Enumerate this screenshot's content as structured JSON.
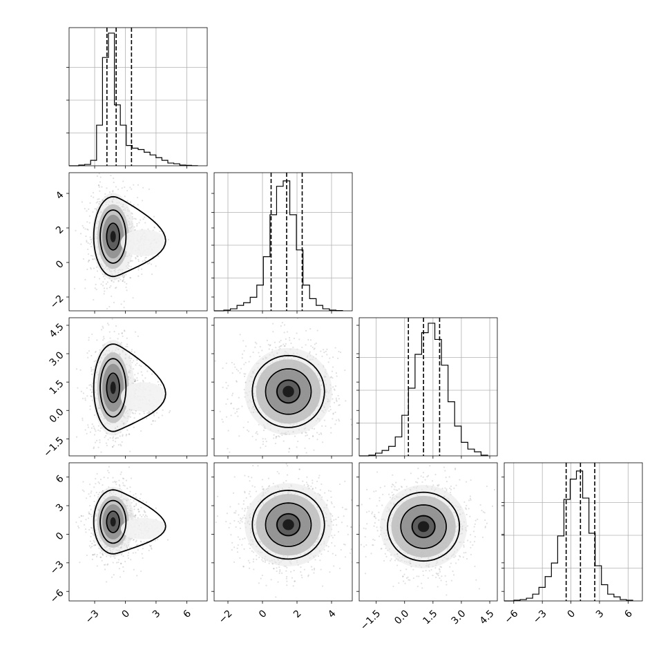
{
  "chart_data": {
    "type": "corner",
    "grid": true,
    "params": [
      {
        "range": [
          -5.5,
          8.0
        ],
        "ticks": [
          -3,
          0,
          3,
          6
        ],
        "tick_labels": [
          "−3",
          "0",
          "3",
          "6"
        ],
        "quantiles": [
          -1.8,
          -0.9,
          0.6
        ],
        "hist": [
          0.005,
          0.01,
          0.04,
          0.3,
          0.8,
          0.98,
          0.45,
          0.3,
          0.15,
          0.13,
          0.12,
          0.1,
          0.08,
          0.06,
          0.04,
          0.02,
          0.015,
          0.005,
          0.003,
          0.001
        ]
      },
      {
        "range": [
          -2.8,
          5.2
        ],
        "ticks": [
          -2,
          0,
          2,
          4
        ],
        "tick_labels": [
          "−2",
          "0",
          "2",
          "4"
        ],
        "quantiles": [
          0.5,
          1.4,
          2.3
        ],
        "hist": [
          0.005,
          0.015,
          0.04,
          0.06,
          0.1,
          0.19,
          0.4,
          0.71,
          0.92,
          0.96,
          0.71,
          0.45,
          0.19,
          0.09,
          0.04,
          0.015,
          0.005,
          0.002
        ]
      },
      {
        "range": [
          -2.4,
          4.9
        ],
        "ticks": [
          -1.5,
          0.0,
          1.5,
          3.0,
          4.5
        ],
        "tick_labels": [
          "−1.5",
          "0.0",
          "1.5",
          "3.0",
          "4.5"
        ],
        "quantiles": [
          0.2,
          1.0,
          1.85
        ],
        "hist": [
          0.005,
          0.02,
          0.04,
          0.07,
          0.14,
          0.3,
          0.5,
          0.75,
          0.91,
          0.98,
          0.86,
          0.67,
          0.4,
          0.22,
          0.1,
          0.05,
          0.03,
          0.005
        ]
      },
      {
        "range": [
          -7.0,
          7.5
        ],
        "ticks": [
          -6,
          -3,
          0,
          3,
          6
        ],
        "tick_labels": [
          "−6",
          "−3",
          "0",
          "3",
          "6"
        ],
        "quantiles": [
          -0.5,
          1.0,
          2.5
        ],
        "hist": [
          0.005,
          0.01,
          0.02,
          0.05,
          0.1,
          0.18,
          0.28,
          0.48,
          0.75,
          0.9,
          0.96,
          0.76,
          0.5,
          0.26,
          0.12,
          0.05,
          0.03,
          0.01,
          0.005
        ]
      }
    ],
    "pairs": [
      {
        "row": 1,
        "col": 0,
        "center": [
          -1.2,
          1.5
        ],
        "sd": [
          0.9,
          1.1
        ],
        "tail_dir": [
          2.5,
          -0.3
        ],
        "contour_widths": [
          0.7,
          1.4,
          2.1
        ]
      },
      {
        "row": 2,
        "col": 0,
        "center": [
          -1.2,
          1.2
        ],
        "sd": [
          0.9,
          1.1
        ],
        "tail_dir": [
          2.5,
          -0.4
        ],
        "contour_widths": [
          0.7,
          1.4,
          2.1
        ]
      },
      {
        "row": 2,
        "col": 1,
        "center": [
          1.5,
          1.0
        ],
        "sd": [
          1.1,
          1.0
        ],
        "tail_dir": [
          0,
          0
        ],
        "contour_widths": [
          0.6,
          1.2,
          1.9
        ]
      },
      {
        "row": 3,
        "col": 0,
        "center": [
          -1.2,
          1.3
        ],
        "sd": [
          0.9,
          1.6
        ],
        "tail_dir": [
          2.5,
          -0.6
        ],
        "contour_widths": [
          0.7,
          1.4,
          2.1
        ]
      },
      {
        "row": 3,
        "col": 1,
        "center": [
          1.5,
          1.0
        ],
        "sd": [
          1.1,
          1.9
        ],
        "tail_dir": [
          0,
          0
        ],
        "contour_widths": [
          0.6,
          1.2,
          1.9
        ]
      },
      {
        "row": 3,
        "col": 2,
        "center": [
          1.0,
          0.8
        ],
        "sd": [
          1.0,
          1.9
        ],
        "tail_dir": [
          0,
          0
        ],
        "contour_widths": [
          0.6,
          1.2,
          1.9
        ]
      }
    ],
    "colors": {
      "line": "#000000",
      "grid": "#b0b0b0",
      "scatter": "#000000"
    }
  }
}
